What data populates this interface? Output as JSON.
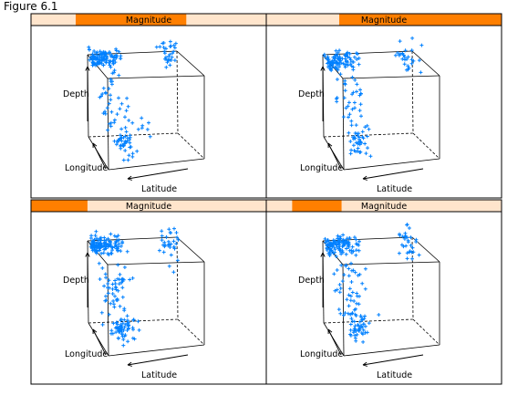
{
  "figure": {
    "title": "Figure 6.1"
  },
  "colors": {
    "strip_background": "#ffe5cc",
    "strip_highlight": "#ff7f00",
    "points": "#0080ff",
    "box": "#000000"
  },
  "chart_data": [
    {
      "type": "scatter",
      "projection": "3d-cloud",
      "panel": 1,
      "strip": {
        "label": "Magnitude",
        "shingle_range": [
          0.19,
          0.66
        ]
      },
      "axis_labels": {
        "x": "Latitude",
        "y": "Longitude",
        "z": "Depth"
      },
      "clusters": [
        {
          "region": "top-left",
          "count": 110,
          "cx": 0.1,
          "cy": 0.72,
          "cz": 0.95,
          "sx": 0.1,
          "sy": 0.1,
          "sz": 0.04
        },
        {
          "region": "top-right",
          "count": 30,
          "cx": 0.82,
          "cy": 0.82,
          "cz": 0.88,
          "sx": 0.05,
          "sy": 0.06,
          "sz": 0.09
        },
        {
          "region": "center-column",
          "count": 40,
          "cx": 0.15,
          "cy": 0.45,
          "cz": 0.55,
          "sx": 0.08,
          "sy": 0.08,
          "sz": 0.18
        },
        {
          "region": "bottom",
          "count": 40,
          "cx": 0.2,
          "cy": 0.22,
          "cz": 0.22,
          "sx": 0.06,
          "sy": 0.06,
          "sz": 0.08
        },
        {
          "region": "bottom-right",
          "count": 8,
          "cx": 0.45,
          "cy": 0.3,
          "cz": 0.3,
          "sx": 0.08,
          "sy": 0.06,
          "sz": 0.06
        }
      ]
    },
    {
      "type": "scatter",
      "projection": "3d-cloud",
      "panel": 2,
      "strip": {
        "label": "Magnitude",
        "shingle_range": [
          0.31,
          1.0
        ]
      },
      "axis_labels": {
        "x": "Latitude",
        "y": "Longitude",
        "z": "Depth"
      },
      "clusters": [
        {
          "region": "top-left",
          "count": 95,
          "cx": 0.12,
          "cy": 0.7,
          "cz": 0.93,
          "sx": 0.1,
          "sy": 0.1,
          "sz": 0.05
        },
        {
          "region": "top-right",
          "count": 28,
          "cx": 0.84,
          "cy": 0.84,
          "cz": 0.85,
          "sx": 0.05,
          "sy": 0.06,
          "sz": 0.1
        },
        {
          "region": "center-column",
          "count": 35,
          "cx": 0.18,
          "cy": 0.45,
          "cz": 0.55,
          "sx": 0.08,
          "sy": 0.08,
          "sz": 0.18
        },
        {
          "region": "bottom",
          "count": 38,
          "cx": 0.22,
          "cy": 0.2,
          "cz": 0.2,
          "sx": 0.06,
          "sy": 0.06,
          "sz": 0.08
        }
      ]
    },
    {
      "type": "scatter",
      "projection": "3d-cloud",
      "panel": 3,
      "strip": {
        "label": "Magnitude",
        "shingle_range": [
          0.0,
          0.24
        ]
      },
      "axis_labels": {
        "x": "Latitude",
        "y": "Longitude",
        "z": "Depth"
      },
      "clusters": [
        {
          "region": "top-left",
          "count": 120,
          "cx": 0.1,
          "cy": 0.72,
          "cz": 0.95,
          "sx": 0.1,
          "sy": 0.1,
          "sz": 0.04
        },
        {
          "region": "top-right",
          "count": 32,
          "cx": 0.82,
          "cy": 0.82,
          "cz": 0.85,
          "sx": 0.05,
          "sy": 0.06,
          "sz": 0.11
        },
        {
          "region": "center-column",
          "count": 55,
          "cx": 0.15,
          "cy": 0.45,
          "cz": 0.55,
          "sx": 0.08,
          "sy": 0.08,
          "sz": 0.18
        },
        {
          "region": "bottom",
          "count": 60,
          "cx": 0.2,
          "cy": 0.22,
          "cz": 0.18,
          "sx": 0.07,
          "sy": 0.07,
          "sz": 0.07
        }
      ]
    },
    {
      "type": "scatter",
      "projection": "3d-cloud",
      "panel": 4,
      "strip": {
        "label": "Magnitude",
        "shingle_range": [
          0.11,
          0.32
        ]
      },
      "axis_labels": {
        "x": "Latitude",
        "y": "Longitude",
        "z": "Depth"
      },
      "clusters": [
        {
          "region": "top-left",
          "count": 115,
          "cx": 0.1,
          "cy": 0.72,
          "cz": 0.95,
          "sx": 0.1,
          "sy": 0.1,
          "sz": 0.04
        },
        {
          "region": "top-right",
          "count": 30,
          "cx": 0.84,
          "cy": 0.84,
          "cz": 0.85,
          "sx": 0.05,
          "sy": 0.06,
          "sz": 0.11
        },
        {
          "region": "center-column",
          "count": 50,
          "cx": 0.16,
          "cy": 0.45,
          "cz": 0.55,
          "sx": 0.08,
          "sy": 0.08,
          "sz": 0.18
        },
        {
          "region": "bottom",
          "count": 45,
          "cx": 0.2,
          "cy": 0.22,
          "cz": 0.2,
          "sx": 0.06,
          "sy": 0.06,
          "sz": 0.08
        }
      ]
    }
  ]
}
